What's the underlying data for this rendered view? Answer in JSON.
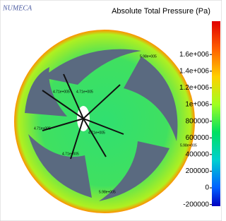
{
  "header": {
    "logo": "NUMECA",
    "title": "Absolute Total Pressure (Pa)"
  },
  "colorbar": {
    "lim": [
      -220000,
      2000000
    ],
    "ticks": [
      {
        "value": 1600000,
        "label": "1.6e+006"
      },
      {
        "value": 1400000,
        "label": "1.4e+006"
      },
      {
        "value": 1200000,
        "label": "1.2e+006"
      },
      {
        "value": 1000000,
        "label": "1e+006"
      },
      800000,
      600000,
      400000,
      200000,
      0,
      -200000
    ]
  },
  "annotations": [
    "5.98e+005",
    "4.71e+005",
    "4.71e+005",
    "4.71e+005",
    "4.71e+005",
    "4.71e+005",
    "5.98e+005",
    "5.98e+005"
  ]
}
